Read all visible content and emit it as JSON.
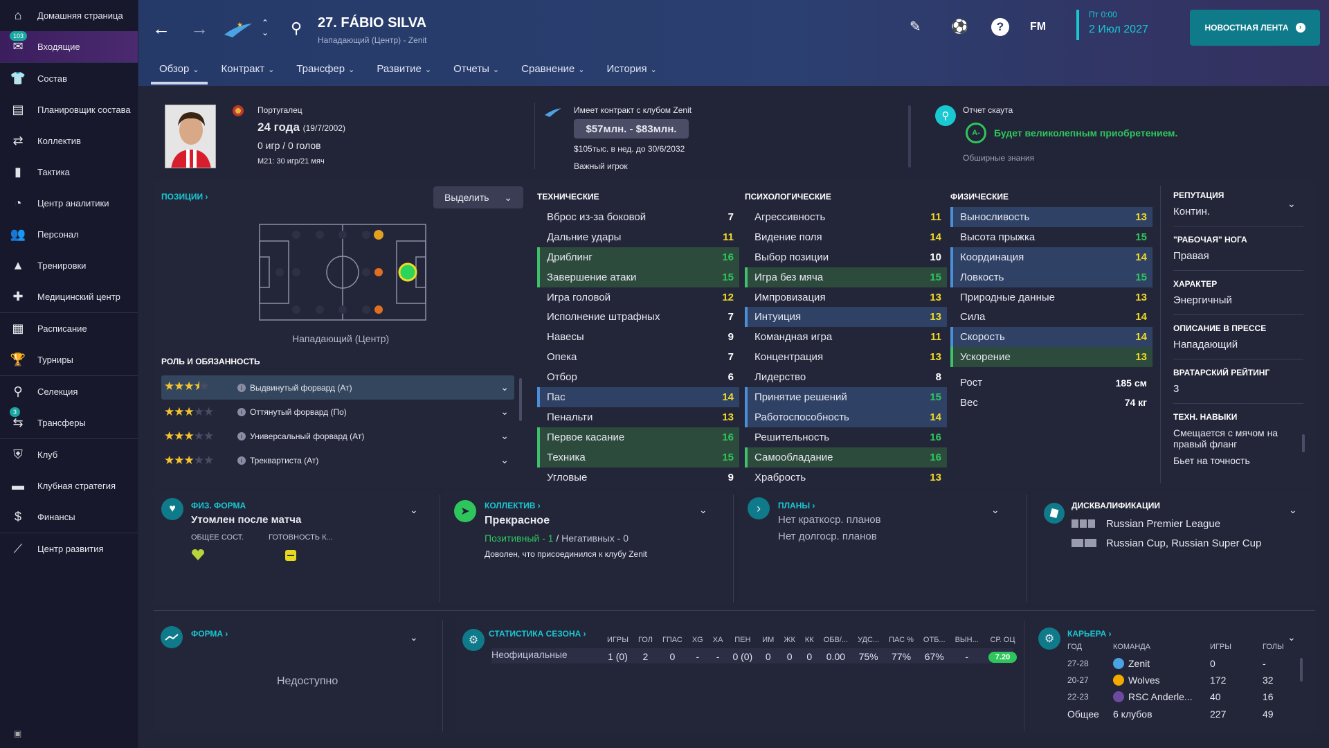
{
  "sidebar": {
    "items": [
      {
        "label": "Домашняя страница",
        "icon": "home-icon"
      },
      {
        "label": "Входящие",
        "icon": "inbox-icon",
        "badge": "103"
      },
      {
        "label": "Состав",
        "icon": "shirt-icon"
      },
      {
        "label": "Планировщик состава",
        "icon": "planner-icon"
      },
      {
        "label": "Коллектив",
        "icon": "dynamics-icon"
      },
      {
        "label": "Тактика",
        "icon": "tactics-icon"
      },
      {
        "label": "Центр аналитики",
        "icon": "analytics-icon"
      },
      {
        "label": "Персонал",
        "icon": "staff-icon"
      },
      {
        "label": "Тренировки",
        "icon": "training-icon"
      },
      {
        "label": "Медицинский центр",
        "icon": "medical-icon"
      },
      {
        "label": "Расписание",
        "icon": "calendar-icon"
      },
      {
        "label": "Турниры",
        "icon": "trophy-icon"
      },
      {
        "label": "Селекция",
        "icon": "scouting-icon"
      },
      {
        "label": "Трансферы",
        "icon": "transfers-icon",
        "badge": "3"
      },
      {
        "label": "Клуб",
        "icon": "club-icon"
      },
      {
        "label": "Клубная стратегия",
        "icon": "strategy-icon"
      },
      {
        "label": "Финансы",
        "icon": "finance-icon"
      },
      {
        "label": "Центр развития",
        "icon": "development-icon"
      }
    ]
  },
  "header": {
    "player_name": "27. FÁBIO SILVA",
    "player_sub": "Нападающий (Центр) - Zenit",
    "date_line1": "Пт 0:00",
    "date_line2": "2 Июл 2027",
    "fm": "FM",
    "news_btn": "НОВОСТНАЯ ЛЕНТА",
    "tabs": [
      "Обзор",
      "Контракт",
      "Трансфер",
      "Развитие",
      "Отчеты",
      "Сравнение",
      "История"
    ]
  },
  "profile": {
    "nationality": "Португалец",
    "age": "24 года",
    "dob": "(19/7/2002)",
    "apps": "0 игр / 0 голов",
    "u21": "M21: 30 игр/21 мяч",
    "contract_title": "Имеет контракт с клубом Zenit",
    "value": "$57млн. - $83млн.",
    "wage": "$105тыс. в нед. до 30/6/2032",
    "status": "Важный игрок",
    "scout_title": "Отчет скаута",
    "scout_grade": "A-",
    "scout_text": "Будет великолепным приобретением.",
    "scout_knowledge": "Обширные знания"
  },
  "positions": {
    "title": "ПОЗИЦИИ",
    "highlight_btn": "Выделить",
    "pos_label": "Нападающий (Центр)",
    "roles_title": "РОЛЬ И ОБЯЗАННОСТЬ",
    "roles": [
      {
        "name": "Выдвинутый форвард (Ат)",
        "stars": 3.5
      },
      {
        "name": "Оттянутый форвард (По)",
        "stars": 3
      },
      {
        "name": "Универсальный форвард (Ат)",
        "stars": 3
      },
      {
        "name": "Треквартиста (Ат)",
        "stars": 3
      }
    ]
  },
  "attributes": {
    "technical": {
      "title": "ТЕХНИЧЕСКИЕ",
      "rows": [
        [
          "Вброс из-за боковой",
          "7",
          ""
        ],
        [
          "Дальние удары",
          "11",
          ""
        ],
        [
          "Дриблинг",
          "16",
          "g"
        ],
        [
          "Завершение атаки",
          "15",
          "g"
        ],
        [
          "Игра головой",
          "12",
          ""
        ],
        [
          "Исполнение штрафных",
          "7",
          ""
        ],
        [
          "Навесы",
          "9",
          ""
        ],
        [
          "Опека",
          "7",
          ""
        ],
        [
          "Отбор",
          "6",
          ""
        ],
        [
          "Пас",
          "14",
          "b"
        ],
        [
          "Пенальти",
          "13",
          ""
        ],
        [
          "Первое касание",
          "16",
          "g"
        ],
        [
          "Техника",
          "15",
          "g"
        ],
        [
          "Угловые",
          "9",
          ""
        ]
      ]
    },
    "mental": {
      "title": "ПСИХОЛОГИЧЕСКИЕ",
      "rows": [
        [
          "Агрессивность",
          "11",
          ""
        ],
        [
          "Видение поля",
          "14",
          ""
        ],
        [
          "Выбор позиции",
          "10",
          ""
        ],
        [
          "Игра без мяча",
          "15",
          "g"
        ],
        [
          "Импровизация",
          "13",
          ""
        ],
        [
          "Интуиция",
          "13",
          "b"
        ],
        [
          "Командная игра",
          "11",
          ""
        ],
        [
          "Концентрация",
          "13",
          ""
        ],
        [
          "Лидерство",
          "8",
          ""
        ],
        [
          "Принятие решений",
          "15",
          "b"
        ],
        [
          "Работоспособность",
          "14",
          "b"
        ],
        [
          "Решительность",
          "16",
          ""
        ],
        [
          "Самообладание",
          "16",
          "g"
        ],
        [
          "Храбрость",
          "13",
          ""
        ]
      ]
    },
    "physical": {
      "title": "ФИЗИЧЕСКИЕ",
      "rows": [
        [
          "Выносливость",
          "13",
          "b"
        ],
        [
          "Высота прыжка",
          "15",
          ""
        ],
        [
          "Координация",
          "14",
          "b"
        ],
        [
          "Ловкость",
          "15",
          "b"
        ],
        [
          "Природные данные",
          "13",
          ""
        ],
        [
          "Сила",
          "14",
          ""
        ],
        [
          "Скорость",
          "14",
          "b"
        ],
        [
          "Ускорение",
          "13",
          "g"
        ]
      ],
      "height_label": "Рост",
      "height": "185 см",
      "weight_label": "Вес",
      "weight": "74 кг"
    }
  },
  "info": [
    {
      "h": "РЕПУТАЦИЯ",
      "v": "Контин."
    },
    {
      "h": "\"РАБОЧАЯ\" НОГА",
      "v": "Правая"
    },
    {
      "h": "ХАРАКТЕР",
      "v": "Энергичный"
    },
    {
      "h": "ОПИСАНИЕ В ПРЕССЕ",
      "v": "Нападающий"
    },
    {
      "h": "ВРАТАРСКИЙ РЕЙТИНГ",
      "v": "3"
    },
    {
      "h": "ТЕХН. НАВЫКИ",
      "v": "Смещается с мячом на правый фланг"
    },
    {
      "h": "",
      "v": "Бьет на точность"
    }
  ],
  "fitness": {
    "title": "ФИЗ. ФОРМА",
    "state": "Утомлен после матча",
    "c1": "ОБЩЕЕ СОСТ.",
    "c2": "ГОТОВНОСТЬ К..."
  },
  "dynamics": {
    "title": "КОЛЛЕКТИВ",
    "state": "Прекрасное",
    "pos": "Позитивный - 1",
    "neg": "Негативных - 0",
    "note": "Доволен, что присоединился к клубу Zenit"
  },
  "plans": {
    "title": "ПЛАНЫ",
    "short": "Нет краткоср. планов",
    "long": "Нет долгоср. планов"
  },
  "bans": {
    "title": "ДИСКВАЛИФИКАЦИИ",
    "l1": "Russian Premier League",
    "l2": "Russian Cup, Russian Super Cup"
  },
  "form": {
    "title": "ФОРМА",
    "na": "Недоступно"
  },
  "season": {
    "title": "СТАТИСТИКА СЕЗОНА",
    "headers": [
      "ИГРЫ",
      "ГОЛ",
      "ГПАС",
      "XG",
      "ХА",
      "ПЕН",
      "ИМ",
      "ЖК",
      "КК",
      "ОБВ/...",
      "УДС...",
      "ПАС %",
      "ОТБ...",
      "ВЫН...",
      "СР. ОЦ"
    ],
    "row_label": "Неофициальные",
    "row": [
      "1 (0)",
      "2",
      "0",
      "-",
      "-",
      "0 (0)",
      "0",
      "0",
      "0",
      "0.00",
      "75%",
      "77%",
      "67%",
      "-",
      "7.20"
    ]
  },
  "career": {
    "title": "КАРЬЕРА",
    "h": [
      "ГОД",
      "КОМАНДА",
      "ИГРЫ",
      "ГОЛЫ"
    ],
    "rows": [
      [
        "27-28",
        "Zenit",
        "0",
        "-"
      ],
      [
        "20-27",
        "Wolves",
        "172",
        "32"
      ],
      [
        "22-23",
        "RSC Anderle...",
        "40",
        "16"
      ]
    ],
    "total_label": "Общее",
    "total_clubs": "6 клубов",
    "total_apps": "227",
    "total_goals": "49"
  }
}
